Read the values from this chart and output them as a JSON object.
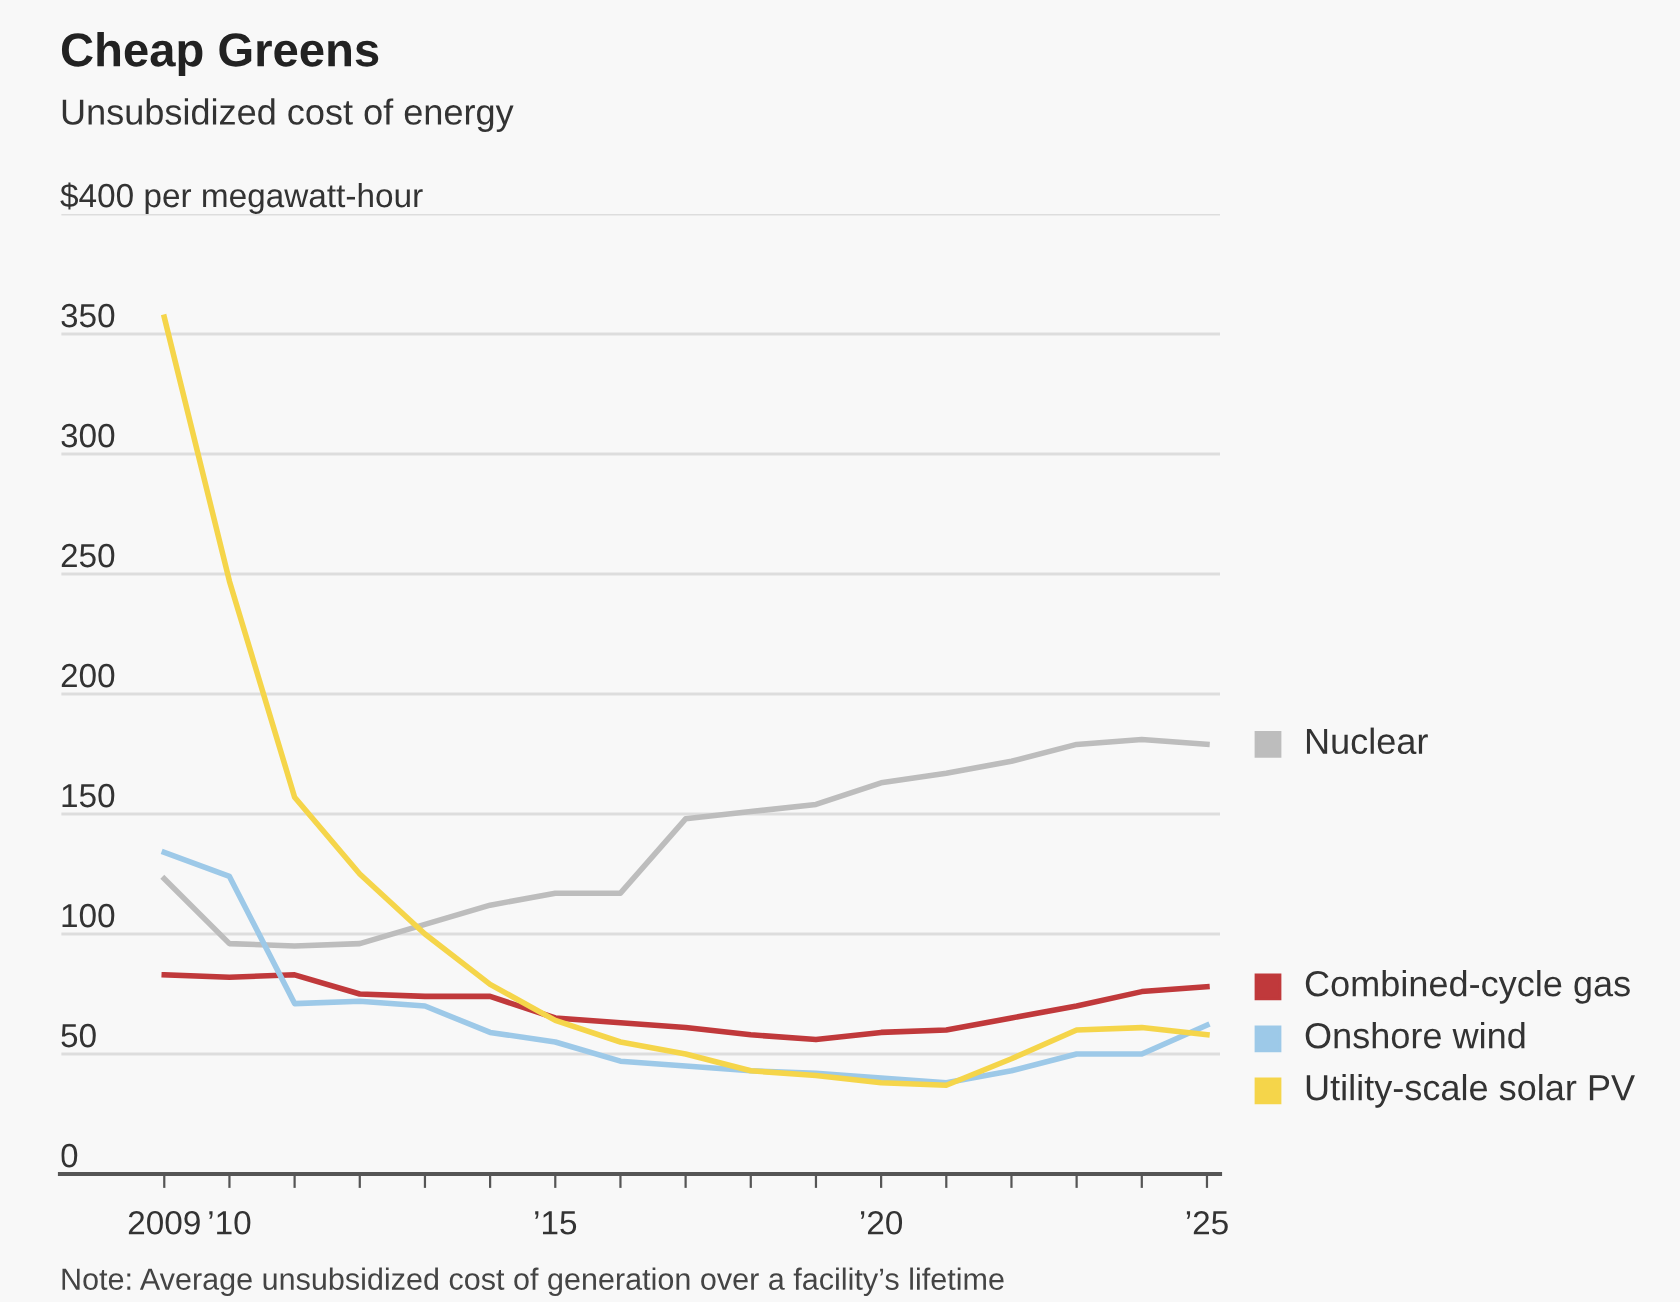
{
  "chart_data": {
    "type": "line",
    "title": "Cheap Greens",
    "subtitle": "Unsubsidized cost of energy",
    "x": [
      2009,
      2010,
      2011,
      2012,
      2013,
      2014,
      2015,
      2016,
      2017,
      2018,
      2019,
      2020,
      2021,
      2022,
      2023,
      2024,
      2025
    ],
    "series": [
      {
        "name": "Nuclear",
        "color": "#bdbdbd",
        "values": [
          123,
          96,
          95,
          96,
          104,
          112,
          117,
          117,
          148,
          151,
          154,
          163,
          167,
          172,
          179,
          181,
          179
        ]
      },
      {
        "name": "Combined-cycle gas",
        "color": "#c0393b",
        "values": [
          83,
          82,
          83,
          75,
          74,
          74,
          65,
          63,
          61,
          58,
          56,
          59,
          60,
          65,
          70,
          76,
          78
        ]
      },
      {
        "name": "Onshore wind",
        "color": "#9dc9e8",
        "values": [
          134,
          124,
          71,
          72,
          70,
          59,
          55,
          47,
          45,
          43,
          42,
          40,
          38,
          43,
          50,
          50,
          62
        ]
      },
      {
        "name": "Utility-scale solar PV",
        "color": "#f5d54a",
        "values": [
          357,
          247,
          157,
          125,
          100,
          79,
          64,
          55,
          50,
          43,
          41,
          38,
          37,
          48,
          60,
          61,
          58
        ]
      }
    ],
    "xlim": [
      2007.4,
      2025.2
    ],
    "ylim": [
      0,
      400
    ],
    "xticks": [
      {
        "value": 2009,
        "label": "2009"
      },
      {
        "value": 2010,
        "label": "’10"
      },
      {
        "value": 2011,
        "label": null
      },
      {
        "value": 2012,
        "label": null
      },
      {
        "value": 2013,
        "label": null
      },
      {
        "value": 2014,
        "label": null
      },
      {
        "value": 2015,
        "label": "’15"
      },
      {
        "value": 2016,
        "label": null
      },
      {
        "value": 2017,
        "label": null
      },
      {
        "value": 2018,
        "label": null
      },
      {
        "value": 2019,
        "label": null
      },
      {
        "value": 2020,
        "label": "’20"
      },
      {
        "value": 2021,
        "label": null
      },
      {
        "value": 2022,
        "label": null
      },
      {
        "value": 2023,
        "label": null
      },
      {
        "value": 2024,
        "label": null
      },
      {
        "value": 2025,
        "label": "’25"
      }
    ],
    "yticks": [
      0,
      50,
      100,
      150,
      200,
      250,
      300,
      350,
      {
        "value": 400,
        "label": "$400 per megawatt-hour"
      }
    ],
    "grid": "y",
    "legend": "right",
    "marker": "none",
    "line_style": "solid",
    "annotations": [
      "Note: Average unsubsidized cost of generation over a facility’s lifetime"
    ]
  }
}
